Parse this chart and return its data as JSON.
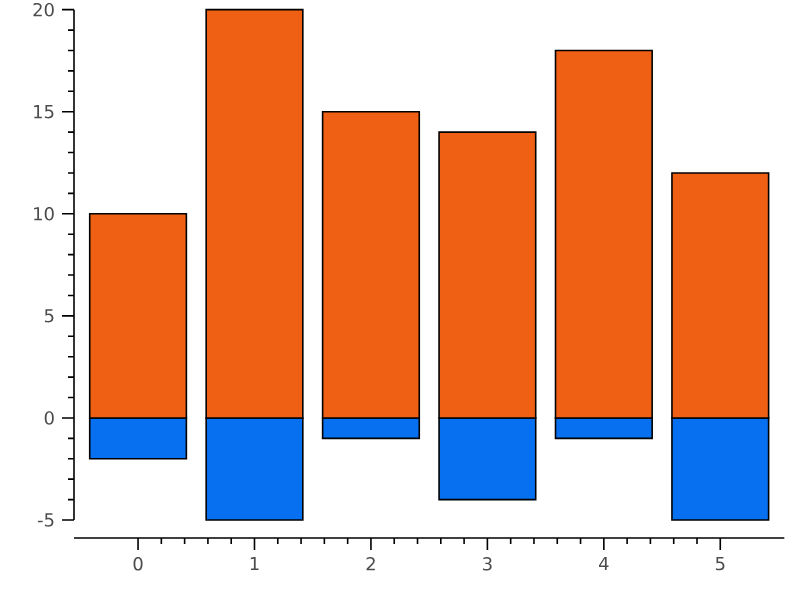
{
  "chart_data": {
    "type": "bar",
    "x": [
      0,
      1,
      2,
      3,
      4,
      5
    ],
    "series": [
      {
        "color": "#f06014",
        "values": [
          10,
          20,
          15,
          14,
          18,
          12
        ]
      },
      {
        "color": "#0670f0",
        "values": [
          -2,
          -5,
          -1,
          -4,
          -1,
          -5
        ]
      }
    ],
    "xlim": [
      -0.55,
      5.55
    ],
    "ylim": [
      -5,
      20
    ],
    "xticks": [
      0,
      1,
      2,
      3,
      4,
      5
    ],
    "yticks": [
      -5,
      0,
      5,
      10,
      15,
      20
    ],
    "grid": false,
    "stacked": true
  }
}
